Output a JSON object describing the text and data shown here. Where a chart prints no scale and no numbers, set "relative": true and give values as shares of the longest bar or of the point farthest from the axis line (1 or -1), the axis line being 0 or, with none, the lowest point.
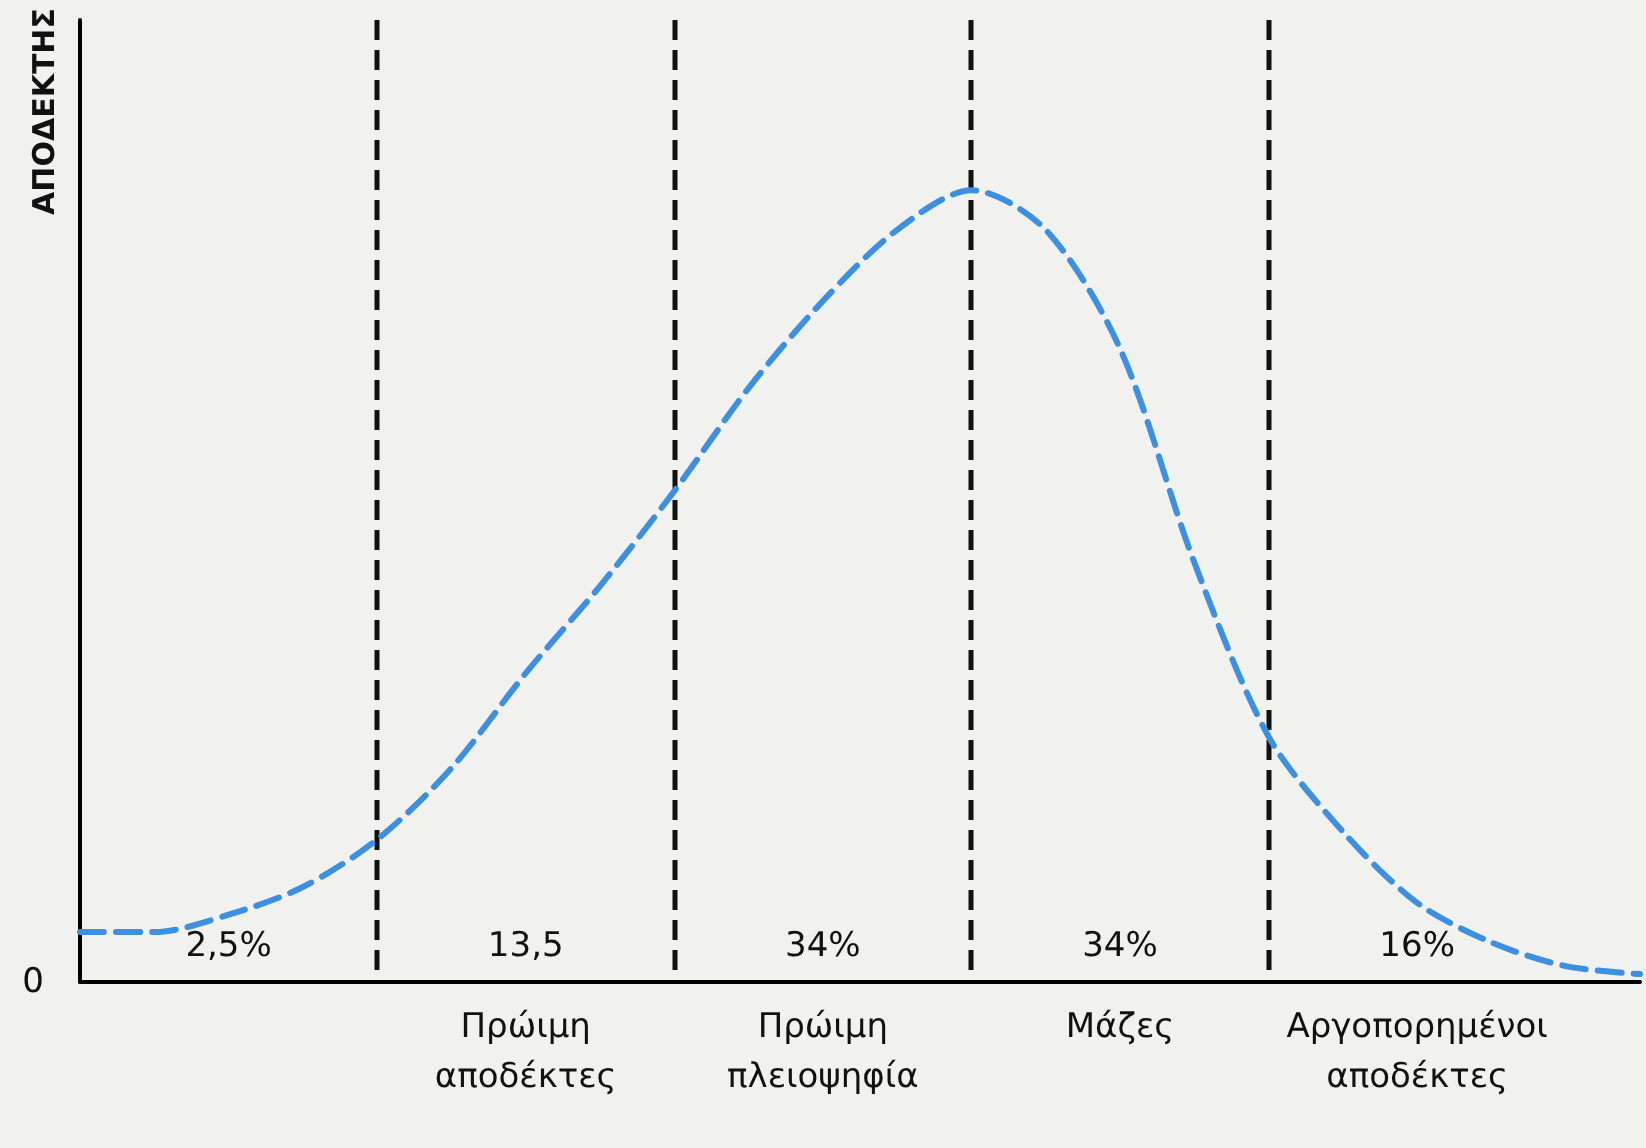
{
  "chart_data": {
    "type": "line",
    "relative": true,
    "ylabel": "ΑΠΟΔΕΚΤΗΣ",
    "categories": [
      null,
      null,
      null,
      null,
      null,
      null,
      "Πρώιμη αποδέκτες",
      null,
      null,
      null,
      "Πρώιμη πλειοψηφία",
      null,
      null,
      null,
      "Μάζες",
      null,
      null,
      null,
      "Αργοπορημένοι αποδέκτες",
      null,
      null,
      null
    ],
    "series": [
      {
        "color": "#3d8fe0",
        "values": [
          0.063,
          0.063,
          0.085,
          0.12,
          0.18,
          0.27,
          0.39,
          0.5,
          0.62,
          0.75,
          0.86,
          0.95,
          1,
          0.95,
          0.8,
          0.53,
          0.31,
          0.19,
          0.1,
          0.05,
          0.02,
          0.01
        ]
      }
    ],
    "annotations": [
      "0",
      "2,5%",
      "13,5",
      "34%",
      "34%",
      "16%"
    ],
    "marker": "none",
    "line_style": "dashed",
    "grid": "x"
  }
}
